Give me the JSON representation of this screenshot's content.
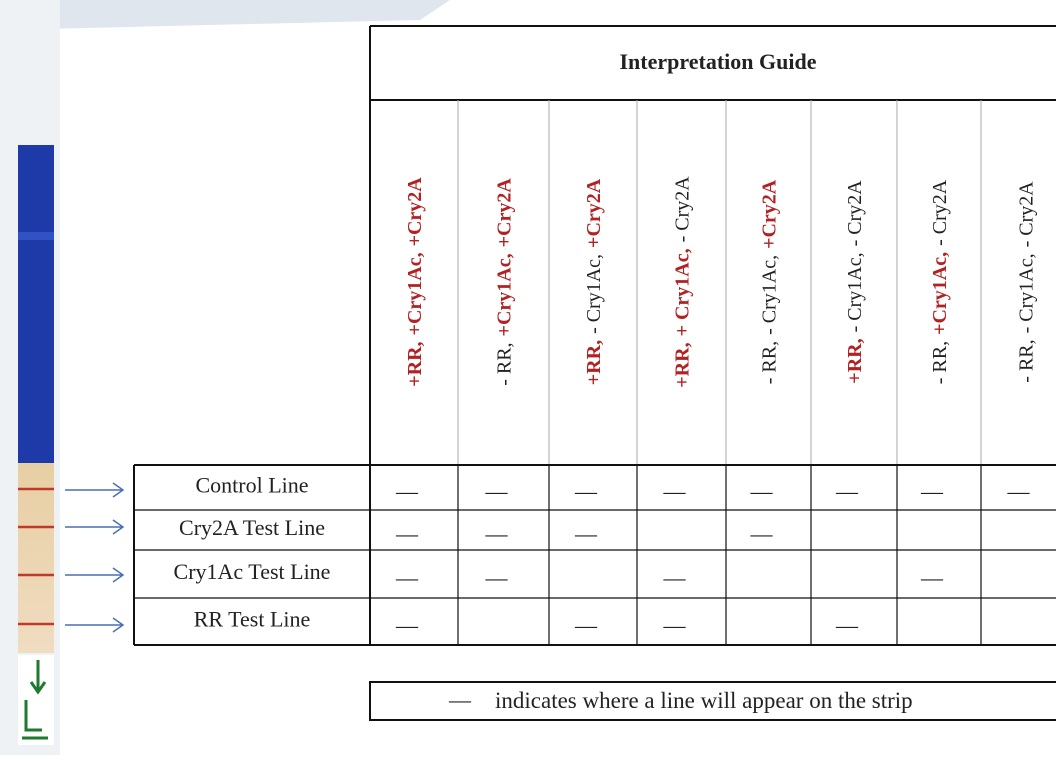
{
  "header": {
    "title": "Interpretation Guide"
  },
  "table": {
    "columns": [
      [
        "+RR,",
        "+Cry1Ac,",
        "+Cry2A"
      ],
      [
        "- RR,",
        "+Cry1Ac,",
        "+Cry2A"
      ],
      [
        "+RR,",
        "- Cry1Ac,",
        "+Cry2A"
      ],
      [
        "+RR,",
        "+ Cry1Ac,",
        "- Cry2A"
      ],
      [
        "- RR,",
        "- Cry1Ac,",
        "+Cry2A"
      ],
      [
        "+RR,",
        "- Cry1Ac,",
        "- Cry2A"
      ],
      [
        "- RR,",
        "+Cry1Ac,",
        "- Cry2A"
      ],
      [
        "- RR,",
        "- Cry1Ac,",
        "- Cry2A"
      ]
    ],
    "rows": [
      {
        "label": "Control Line",
        "cells": [
          "—",
          "—",
          "—",
          "—",
          "—",
          "—",
          "—",
          "—"
        ]
      },
      {
        "label": "Cry2A Test Line",
        "cells": [
          "—",
          "—",
          "—",
          null,
          "—",
          null,
          null,
          null
        ]
      },
      {
        "label": "Cry1Ac Test Line",
        "cells": [
          "—",
          "—",
          null,
          "—",
          null,
          null,
          "—",
          null
        ]
      },
      {
        "label": "RR Test Line",
        "cells": [
          "—",
          null,
          "—",
          "—",
          null,
          "—",
          null,
          null
        ]
      }
    ]
  },
  "legend": {
    "symbol": "—",
    "text": "indicates where a line will appear on the strip"
  }
}
